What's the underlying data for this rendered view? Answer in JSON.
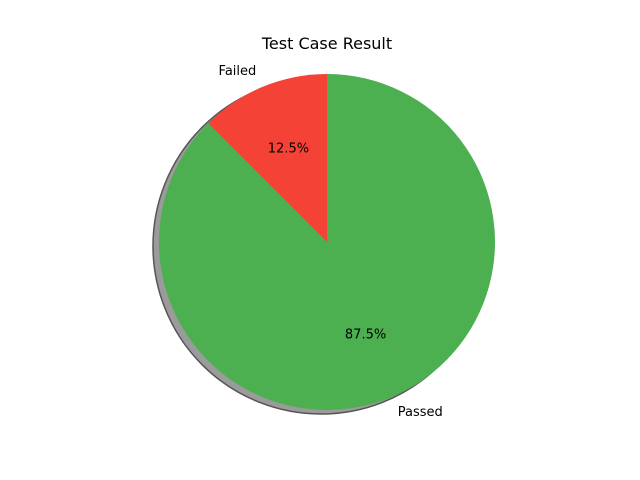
{
  "chart_data": {
    "type": "pie",
    "title": "Test Case Result",
    "slices": [
      {
        "label": "Passed",
        "value": 87.5,
        "percent_label": "87.5%",
        "color": "#4caf50"
      },
      {
        "label": "Failed",
        "value": 12.5,
        "percent_label": "12.5%",
        "color": "#f44336"
      }
    ],
    "shadow": true,
    "legend": "none"
  }
}
